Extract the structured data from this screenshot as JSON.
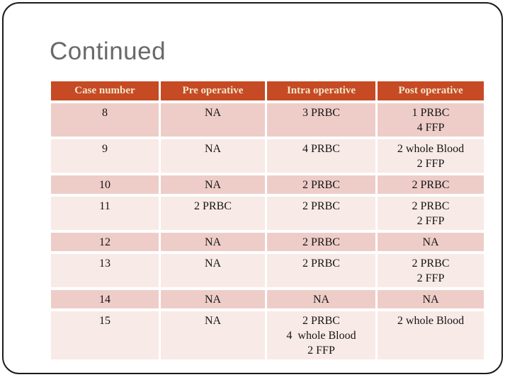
{
  "slide": {
    "title": "Continued"
  },
  "table": {
    "headers": [
      "Case number",
      "Pre operative",
      "Intra operative",
      "Post operative"
    ],
    "column_keys": [
      "case",
      "pre",
      "intra",
      "post"
    ],
    "rows": [
      {
        "case": [
          "8"
        ],
        "pre": [
          "NA"
        ],
        "intra": [
          "3 PRBC"
        ],
        "post": [
          "1 PRBC",
          "4 FFP"
        ]
      },
      {
        "case": [
          "9"
        ],
        "pre": [
          "NA"
        ],
        "intra": [
          "4 PRBC"
        ],
        "post": [
          "2 whole Blood",
          "2 FFP"
        ]
      },
      {
        "case": [
          "10"
        ],
        "pre": [
          "NA"
        ],
        "intra": [
          "2 PRBC"
        ],
        "post": [
          "2 PRBC"
        ]
      },
      {
        "case": [
          "11"
        ],
        "pre": [
          "2 PRBC"
        ],
        "intra": [
          "2 PRBC"
        ],
        "post": [
          "2 PRBC",
          "2 FFP"
        ]
      },
      {
        "case": [
          "12"
        ],
        "pre": [
          "NA"
        ],
        "intra": [
          "2 PRBC"
        ],
        "post": [
          "NA"
        ]
      },
      {
        "case": [
          "13"
        ],
        "pre": [
          "NA"
        ],
        "intra": [
          "2 PRBC"
        ],
        "post": [
          "2 PRBC",
          "2 FFP"
        ]
      },
      {
        "case": [
          "14"
        ],
        "pre": [
          "NA"
        ],
        "intra": [
          "NA"
        ],
        "post": [
          "NA"
        ]
      },
      {
        "case": [
          "15"
        ],
        "pre": [
          "NA"
        ],
        "intra": [
          "2 PRBC",
          "4  whole Blood",
          "2 FFP"
        ],
        "post": [
          "2 whole Blood"
        ]
      }
    ]
  },
  "colors": {
    "header_background": "#C64A24",
    "header_text": "#F2E7CC",
    "row_band_dark": "#EECDC8",
    "row_band_light": "#F8EAE6",
    "cell_text": "#141414",
    "title_text": "#696969",
    "frame_border": "#1B1B1B",
    "slide_background": "#FFFFFF"
  }
}
